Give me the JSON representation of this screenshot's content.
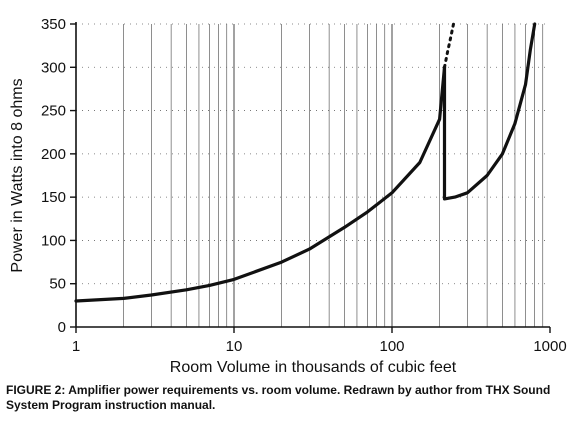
{
  "chart_data": {
    "type": "line",
    "xlabel": "Room Volume in thousands of cubic feet",
    "ylabel": "Power in Watts into 8 ohms",
    "x_scale": "log",
    "xlim": [
      1,
      1000
    ],
    "ylim": [
      0,
      350
    ],
    "x_ticks": [
      1,
      10,
      100,
      1000
    ],
    "x_tick_labels": [
      "1",
      "10",
      "100",
      "1000"
    ],
    "y_ticks": [
      0,
      50,
      100,
      150,
      200,
      250,
      300,
      350
    ],
    "y_tick_labels": [
      "0",
      "50",
      "100",
      "150",
      "200",
      "250",
      "300",
      "350"
    ],
    "grid": "log-spaced vertical lines, sparse dotted horizontal marks",
    "series": [
      {
        "style": "solid",
        "color": "#111111",
        "x": [
          1,
          2,
          3,
          5,
          7,
          10,
          20,
          30,
          50,
          70,
          100,
          150,
          200,
          215
        ],
        "y": [
          30,
          33,
          37,
          43,
          48,
          55,
          75,
          90,
          115,
          133,
          155,
          190,
          240,
          300
        ]
      },
      {
        "style": "solid",
        "color": "#111111",
        "x": [
          215,
          215,
          250,
          300,
          400,
          500,
          600,
          700,
          750,
          800
        ],
        "y": [
          300,
          148,
          150,
          155,
          175,
          200,
          235,
          280,
          320,
          350
        ]
      },
      {
        "style": "dotted",
        "color": "#111111",
        "x": [
          215,
          225,
          235,
          245
        ],
        "y": [
          300,
          318,
          334,
          350
        ]
      }
    ]
  },
  "caption": "FIGURE 2: Amplifier power requirements vs. room volume. Redrawn by author from THX Sound System Program instruction manual."
}
